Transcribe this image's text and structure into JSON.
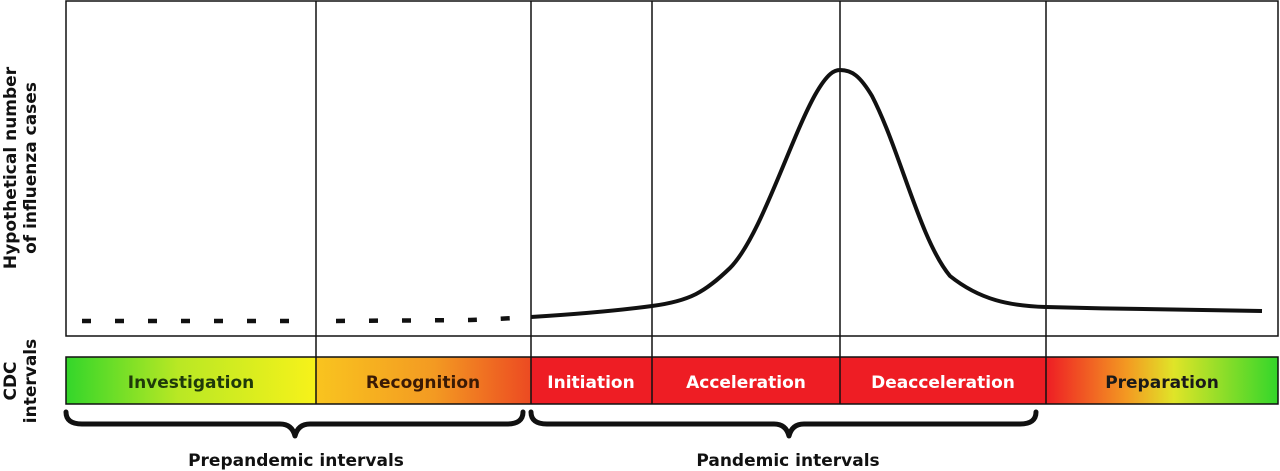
{
  "y_axis_label": {
    "line1": "Hypothetical number",
    "line2": "of influenza cases"
  },
  "band_axis_label": {
    "line1": "CDC",
    "line2": "intervals"
  },
  "intervals": [
    {
      "key": "investigation",
      "label": "Investigation",
      "label_color": "#1f3a0a"
    },
    {
      "key": "recognition",
      "label": "Recognition",
      "label_color": "#3a1a05"
    },
    {
      "key": "initiation",
      "label": "Initiation",
      "label_color": "#ffffff"
    },
    {
      "key": "acceleration",
      "label": "Acceleration",
      "label_color": "#ffffff"
    },
    {
      "key": "deacceleration",
      "label": "Deacceleration",
      "label_color": "#ffffff"
    },
    {
      "key": "preparation",
      "label": "Preparation",
      "label_color": "#1a1a1a"
    }
  ],
  "groups": {
    "prepandemic": "Prepandemic intervals",
    "pandemic": "Pandemic intervals"
  },
  "colors": {
    "green": "#33d62a",
    "yellow": "#f7f21a",
    "orange": "#f6a61e",
    "red": "#ee1d24",
    "line": "#111111"
  }
}
